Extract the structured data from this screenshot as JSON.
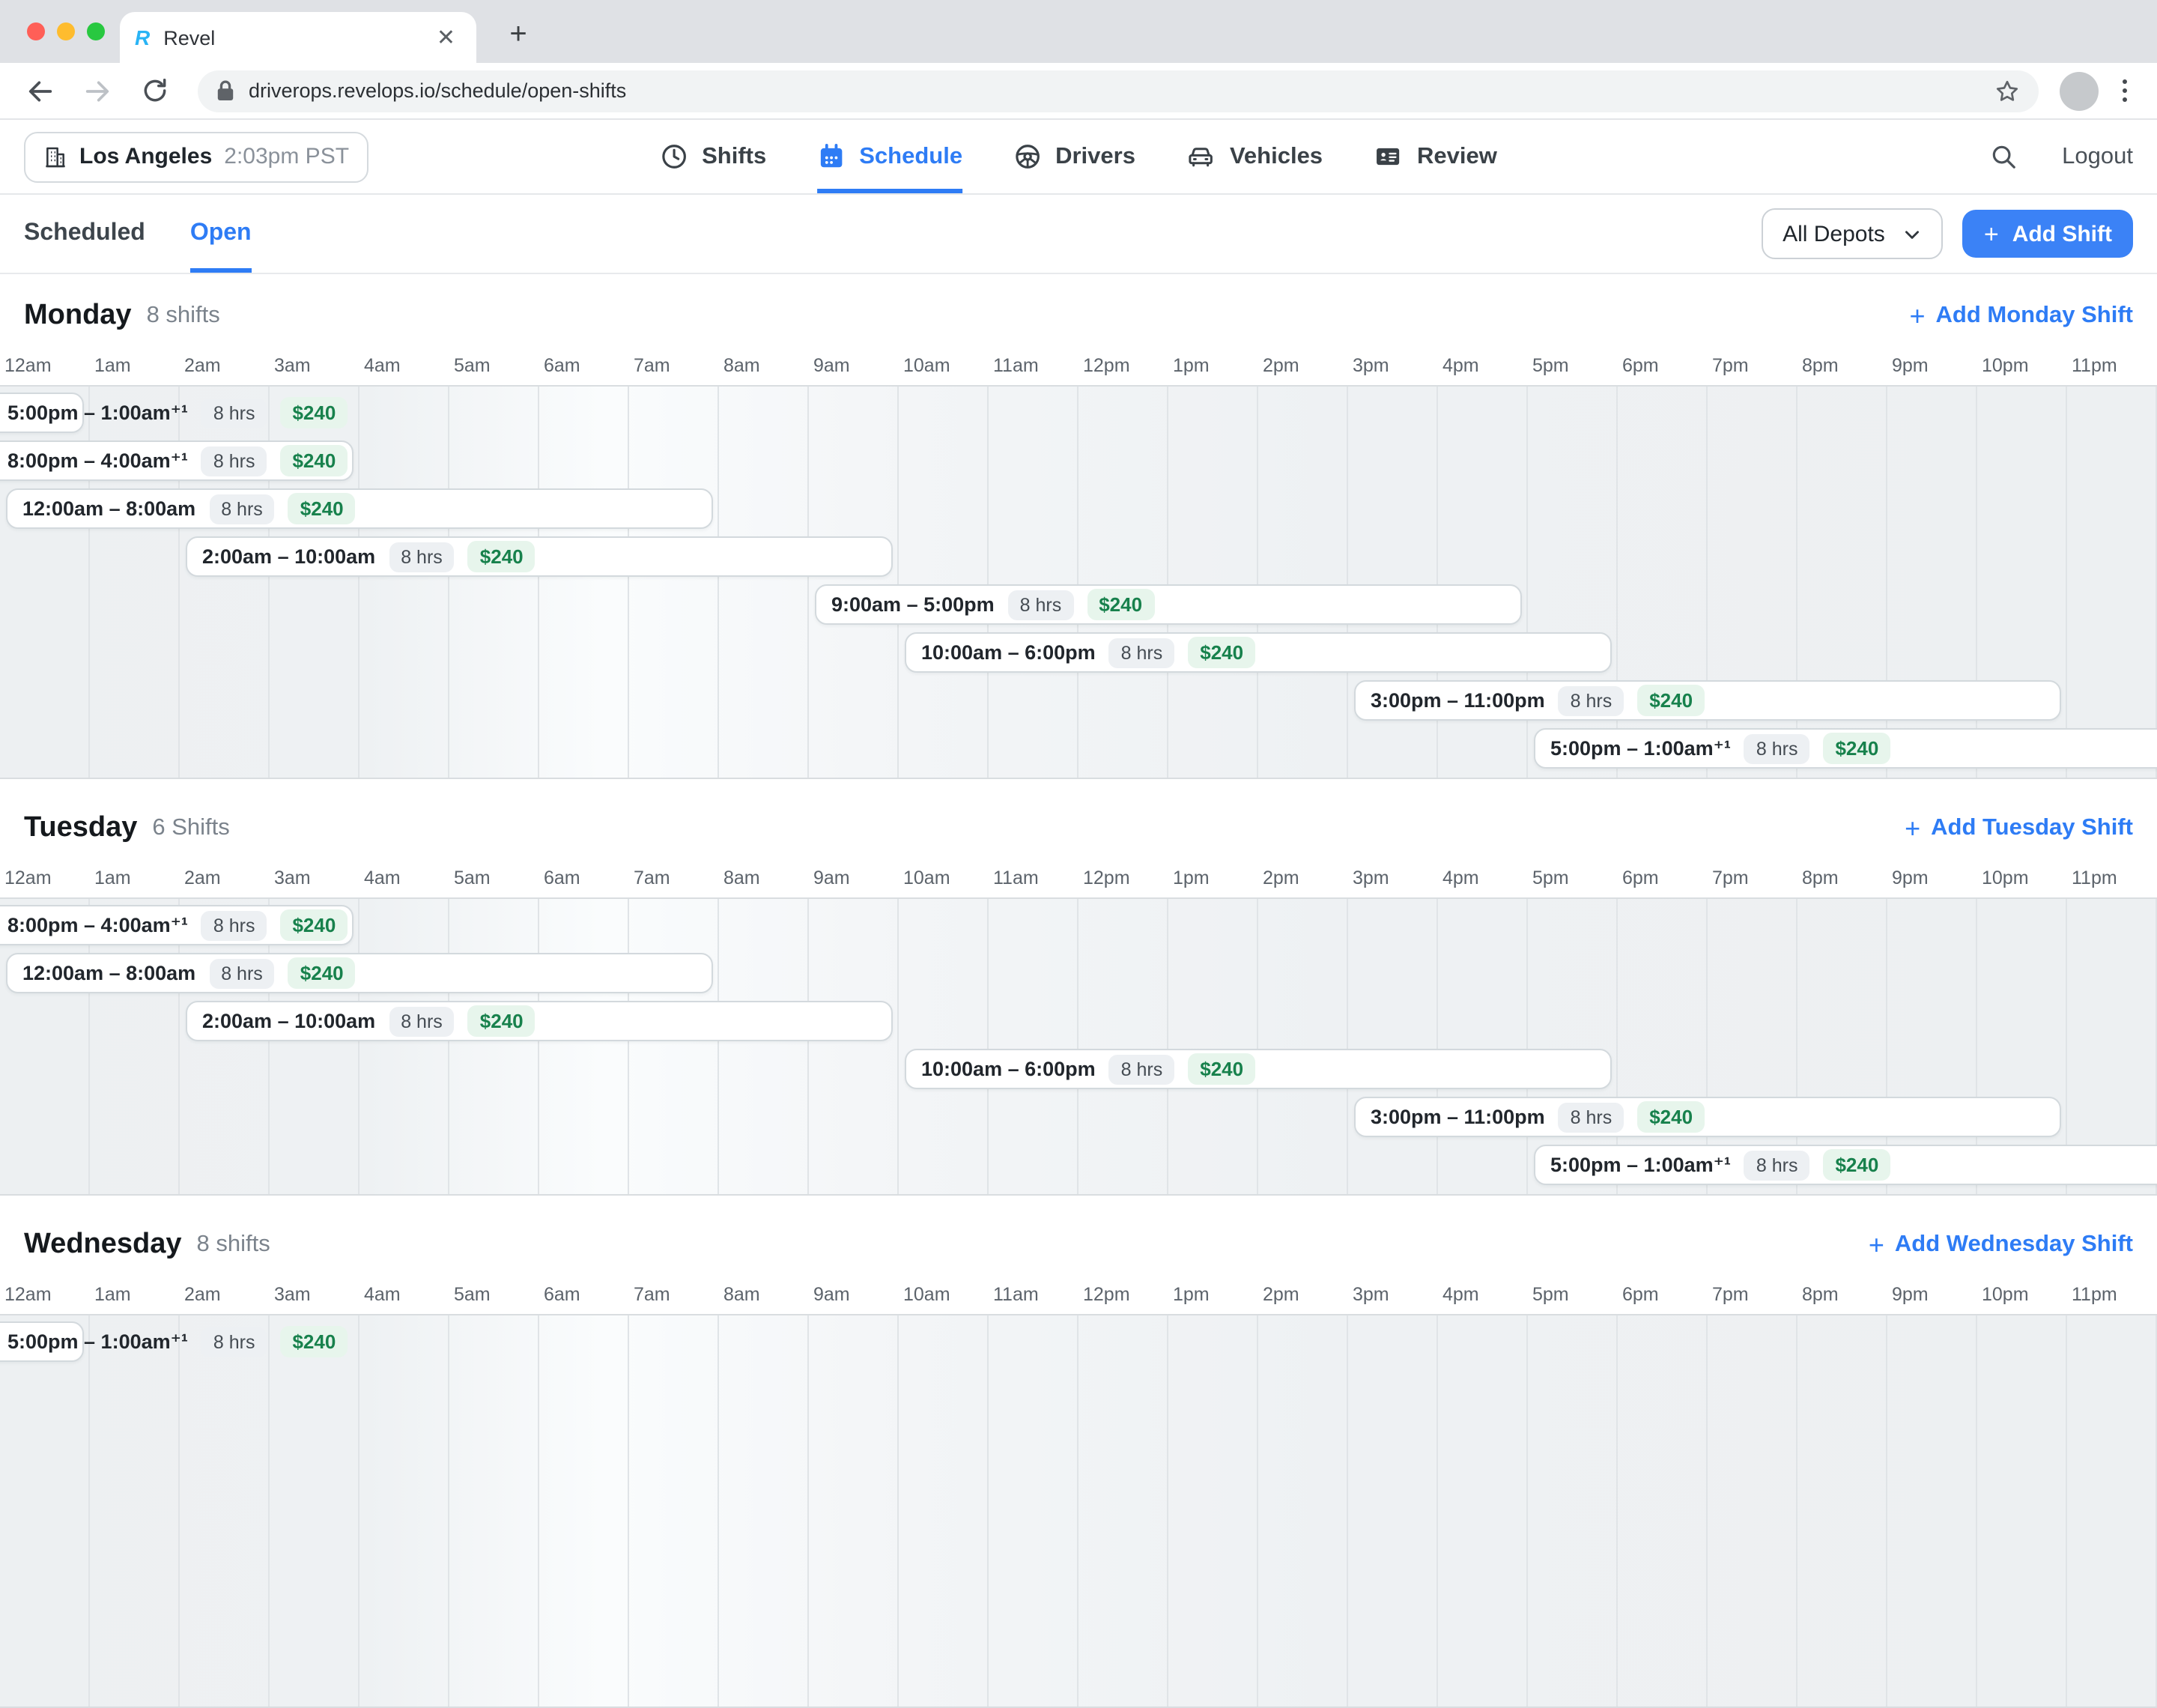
{
  "browser": {
    "tab_title": "Revel",
    "favicon_letter": "R",
    "url": "driverops.revelops.io/schedule/open-shifts"
  },
  "header": {
    "location": {
      "name": "Los Angeles",
      "time": "2:03pm PST"
    },
    "nav": [
      {
        "label": "Shifts",
        "icon": "clock-icon",
        "active": false
      },
      {
        "label": "Schedule",
        "icon": "calendar-icon",
        "active": true
      },
      {
        "label": "Drivers",
        "icon": "steering-wheel-icon",
        "active": false
      },
      {
        "label": "Vehicles",
        "icon": "car-icon",
        "active": false
      },
      {
        "label": "Review",
        "icon": "id-card-icon",
        "active": false
      }
    ],
    "logout_label": "Logout"
  },
  "subheader": {
    "tabs": [
      {
        "label": "Scheduled",
        "active": false
      },
      {
        "label": "Open",
        "active": true
      }
    ],
    "depot_filter_value": "All Depots",
    "add_shift_label": "Add Shift"
  },
  "timeline": {
    "hours": [
      "12am",
      "1am",
      "2am",
      "3am",
      "4am",
      "5am",
      "6am",
      "7am",
      "8am",
      "9am",
      "10am",
      "11am",
      "12pm",
      "1pm",
      "2pm",
      "3pm",
      "4pm",
      "5pm",
      "6pm",
      "7pm",
      "8pm",
      "9pm",
      "10pm",
      "11pm"
    ]
  },
  "colors": {
    "accent_blue": "#2e7cf5",
    "button_blue": "#3b82f6",
    "pay_green_text": "#17814c",
    "pay_green_bg": "#e7f5ec",
    "duration_gray_bg": "#edf0f3"
  },
  "days": [
    {
      "name": "Monday",
      "count_label": "8 shifts",
      "add_label": "Add Monday Shift",
      "rows_total": 8,
      "shifts": [
        {
          "time": "5:00pm – 1:00am⁺¹",
          "duration": "8 hrs",
          "pay": "$240",
          "from": 0,
          "to": 1,
          "clip": "left"
        },
        {
          "time": "8:00pm – 4:00am⁺¹",
          "duration": "8 hrs",
          "pay": "$240",
          "from": 0,
          "to": 4,
          "clip": "left"
        },
        {
          "time": "12:00am – 8:00am",
          "duration": "8 hrs",
          "pay": "$240",
          "from": 0,
          "to": 8,
          "clip": "none"
        },
        {
          "time": "2:00am – 10:00am",
          "duration": "8 hrs",
          "pay": "$240",
          "from": 2,
          "to": 10,
          "clip": "none"
        },
        {
          "time": "9:00am – 5:00pm",
          "duration": "8 hrs",
          "pay": "$240",
          "from": 9,
          "to": 17,
          "clip": "none"
        },
        {
          "time": "10:00am – 6:00pm",
          "duration": "8 hrs",
          "pay": "$240",
          "from": 10,
          "to": 18,
          "clip": "none"
        },
        {
          "time": "3:00pm – 11:00pm",
          "duration": "8 hrs",
          "pay": "$240",
          "from": 15,
          "to": 23,
          "clip": "none"
        },
        {
          "time": "5:00pm – 1:00am⁺¹",
          "duration": "8 hrs",
          "pay": "$240",
          "from": 17,
          "to": 25,
          "clip": "right"
        }
      ]
    },
    {
      "name": "Tuesday",
      "count_label": "6 Shifts",
      "add_label": "Add Tuesday Shift",
      "rows_total": 6,
      "shifts": [
        {
          "time": "8:00pm – 4:00am⁺¹",
          "duration": "8 hrs",
          "pay": "$240",
          "from": 0,
          "to": 4,
          "clip": "left"
        },
        {
          "time": "12:00am – 8:00am",
          "duration": "8 hrs",
          "pay": "$240",
          "from": 0,
          "to": 8,
          "clip": "none"
        },
        {
          "time": "2:00am – 10:00am",
          "duration": "8 hrs",
          "pay": "$240",
          "from": 2,
          "to": 10,
          "clip": "none"
        },
        {
          "time": "10:00am – 6:00pm",
          "duration": "8 hrs",
          "pay": "$240",
          "from": 10,
          "to": 18,
          "clip": "none"
        },
        {
          "time": "3:00pm – 11:00pm",
          "duration": "8 hrs",
          "pay": "$240",
          "from": 15,
          "to": 23,
          "clip": "none"
        },
        {
          "time": "5:00pm – 1:00am⁺¹",
          "duration": "8 hrs",
          "pay": "$240",
          "from": 17,
          "to": 25,
          "clip": "right"
        }
      ]
    },
    {
      "name": "Wednesday",
      "count_label": "8 shifts",
      "add_label": "Add Wednesday Shift",
      "rows_total": 8,
      "shifts": [
        {
          "time": "5:00pm – 1:00am⁺¹",
          "duration": "8 hrs",
          "pay": "$240",
          "from": 0,
          "to": 1,
          "clip": "left"
        }
      ]
    }
  ]
}
